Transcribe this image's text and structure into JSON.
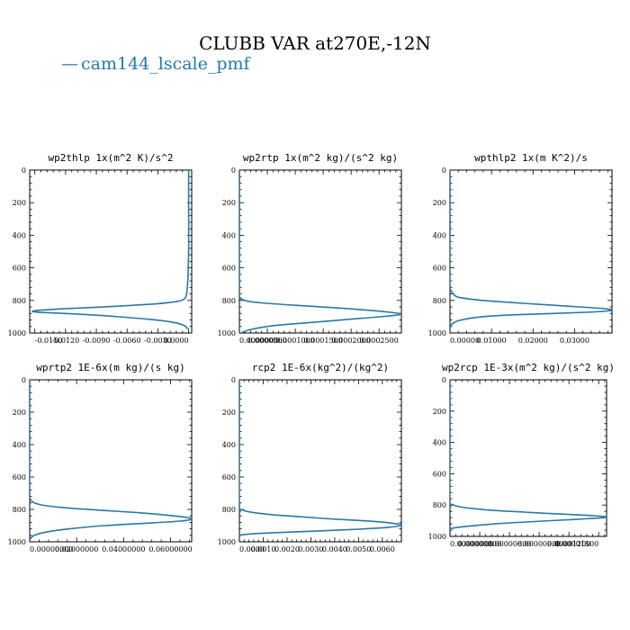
{
  "figure": {
    "title": "CLUBB VAR at270E,-12N",
    "legend": [
      {
        "label": "cam144_lscale_pmf",
        "symbol": "—",
        "color": "#2a78a8"
      }
    ]
  },
  "chart_data": [
    {
      "type": "line",
      "title": "wp2thlp  1x(m^2 K)/s^2",
      "xlim": [
        -0.0155,
        0.0003
      ],
      "ylim": [
        1000,
        0
      ],
      "xticks": [
        -0.015,
        -0.012,
        -0.009,
        -0.006,
        -0.003,
        0.0
      ],
      "xtick_labels": [
        "-0.0150",
        "-0.0120",
        "-0.0090",
        "-0.0060",
        "-0.0030",
        "0.0000"
      ],
      "yticks": [
        0,
        200,
        400,
        600,
        800,
        1000
      ],
      "ytick_labels": [
        "0",
        "200",
        "400",
        "600",
        "800",
        "1000"
      ],
      "series": [
        {
          "color": "#2a78a8",
          "x": [
            0.0,
            0.0,
            0.0,
            -0.0001,
            -0.0002,
            -0.0003,
            -0.0004,
            -0.001,
            -0.003,
            -0.006,
            -0.009,
            -0.0125,
            -0.0145,
            -0.0152,
            -0.0148,
            -0.012,
            -0.008,
            -0.004,
            -0.0015,
            -0.0004,
            -0.0001
          ],
          "y": [
            0,
            200,
            500,
            700,
            760,
            780,
            790,
            805,
            820,
            832,
            842,
            852,
            860,
            866,
            872,
            880,
            895,
            915,
            935,
            955,
            975
          ]
        }
      ]
    },
    {
      "type": "line",
      "title": "wp2rtp  1x(m^2 kg)/(s^2 kg)",
      "xlim": [
        0.0,
        0.00029
      ],
      "ylim": [
        1000,
        0
      ],
      "xticks": [
        0.0,
        5e-05,
        0.0001,
        0.00015,
        0.0002,
        0.00025
      ],
      "xtick_labels": [
        "0.0000000",
        "0.0000500",
        "0.0001000",
        "0.0001500",
        "0.0002000",
        "0.0002500"
      ],
      "yticks": [
        0,
        200,
        400,
        600,
        800,
        1000
      ],
      "ytick_labels": [
        "0",
        "200",
        "400",
        "600",
        "800",
        "1000"
      ],
      "series": [
        {
          "color": "#2a78a8",
          "x": [
            0.0,
            0.0,
            0.0,
            2e-06,
            6e-06,
            1.5e-05,
            4e-05,
            0.0001,
            0.00017,
            0.00023,
            0.00027,
            0.00029,
            0.00026,
            0.0002,
            0.00013,
            6e-05,
            2.5e-05,
            5e-06
          ],
          "y": [
            0,
            400,
            760,
            785,
            795,
            805,
            815,
            830,
            845,
            860,
            873,
            885,
            898,
            915,
            935,
            955,
            975,
            995
          ]
        }
      ]
    },
    {
      "type": "line",
      "title": "wpthlp2  1x(m K^2)/s",
      "xlim": [
        0.0,
        0.039
      ],
      "ylim": [
        1000,
        0
      ],
      "xticks": [
        0.0,
        0.01,
        0.02,
        0.03
      ],
      "xtick_labels": [
        "0.00000",
        "0.01000",
        "0.02000",
        "0.03000"
      ],
      "yticks": [
        0,
        200,
        400,
        600,
        800,
        1000
      ],
      "ytick_labels": [
        "0",
        "200",
        "400",
        "600",
        "800",
        "1000"
      ],
      "series": [
        {
          "color": "#2a78a8",
          "x": [
            0.0,
            0.0,
            0.0,
            0.0003,
            0.0008,
            0.002,
            0.006,
            0.013,
            0.022,
            0.031,
            0.037,
            0.039,
            0.035,
            0.025,
            0.014,
            0.006,
            0.002,
            0.0005,
            0.0
          ],
          "y": [
            0,
            400,
            700,
            740,
            760,
            780,
            795,
            810,
            825,
            840,
            850,
            860,
            870,
            880,
            890,
            905,
            925,
            945,
            970
          ]
        }
      ]
    },
    {
      "type": "line",
      "title": "wprtp2  1E-6x(m kg)/(s kg)",
      "xlim": [
        0.0,
        0.069
      ],
      "ylim": [
        1000,
        0
      ],
      "xticks": [
        0.0,
        0.02,
        0.04,
        0.06
      ],
      "xtick_labels": [
        "0.00000000",
        "0.02000000",
        "0.04000000",
        "0.06000000"
      ],
      "yticks": [
        0,
        200,
        400,
        600,
        800,
        1000
      ],
      "ytick_labels": [
        "0",
        "200",
        "400",
        "600",
        "800",
        "1000"
      ],
      "series": [
        {
          "color": "#2a78a8",
          "x": [
            0.0,
            0.0,
            0.0,
            0.0005,
            0.002,
            0.006,
            0.015,
            0.03,
            0.046,
            0.058,
            0.066,
            0.069,
            0.064,
            0.05,
            0.032,
            0.017,
            0.007,
            0.002,
            0.0003,
            0.0
          ],
          "y": [
            0,
            400,
            700,
            740,
            760,
            775,
            790,
            805,
            820,
            835,
            848,
            860,
            872,
            885,
            900,
            920,
            940,
            960,
            980,
            998
          ]
        }
      ]
    },
    {
      "type": "line",
      "title": "rcp2  1E-6x(kg^2)/(kg^2)",
      "xlim": [
        0.0,
        0.0068
      ],
      "ylim": [
        1000,
        0
      ],
      "xticks": [
        0.0,
        0.001,
        0.002,
        0.003,
        0.004,
        0.005,
        0.006
      ],
      "xtick_labels": [
        "0.0000",
        "0.0010",
        "0.0020",
        "0.0030",
        "0.0040",
        "0.0050",
        "0.0060"
      ],
      "yticks": [
        0,
        200,
        400,
        600,
        800,
        1000
      ],
      "ytick_labels": [
        "0",
        "200",
        "400",
        "600",
        "800",
        "1000"
      ],
      "series": [
        {
          "color": "#2a78a8",
          "x": [
            0.0,
            0.0,
            0.0,
            0.0001,
            0.0004,
            0.0012,
            0.0025,
            0.004,
            0.0055,
            0.0064,
            0.0068,
            0.0063,
            0.005,
            0.003,
            0.0013,
            0.0004,
            5e-05,
            0.0
          ],
          "y": [
            0,
            400,
            780,
            800,
            815,
            830,
            845,
            860,
            873,
            885,
            897,
            910,
            922,
            935,
            945,
            952,
            958,
            962
          ]
        }
      ]
    },
    {
      "type": "line",
      "title": "wp2rcp  1E-3x(m^2 kg)/(s^2 kg)",
      "xlim": [
        0.0,
        1.58e-05
      ],
      "ylim": [
        1000,
        0
      ],
      "xticks": [
        0.0,
        3e-06,
        6e-06,
        9e-06,
        1.2e-05,
        1.5e-05
      ],
      "xtick_labels": [
        "0.00000000",
        "0.00000300",
        "0.00000600",
        "0.00000900",
        "0.00001200",
        "0.00001500"
      ],
      "yticks": [
        0,
        200,
        400,
        600,
        800,
        1000
      ],
      "ytick_labels": [
        "0",
        "200",
        "400",
        "600",
        "800",
        "1000"
      ],
      "series": [
        {
          "color": "#2a78a8",
          "x": [
            0.0,
            0.0,
            0.0,
            2e-07,
            8e-07,
            2e-06,
            4e-06,
            7.5e-06,
            1.1e-05,
            1.45e-05,
            1.58e-05,
            1.3e-05,
            8.5e-06,
            4.5e-06,
            1.8e-06,
            5e-07,
            1e-07,
            0.0
          ],
          "y": [
            0,
            400,
            780,
            795,
            808,
            820,
            832,
            845,
            857,
            868,
            878,
            890,
            905,
            920,
            935,
            945,
            950,
            955
          ]
        }
      ]
    }
  ]
}
